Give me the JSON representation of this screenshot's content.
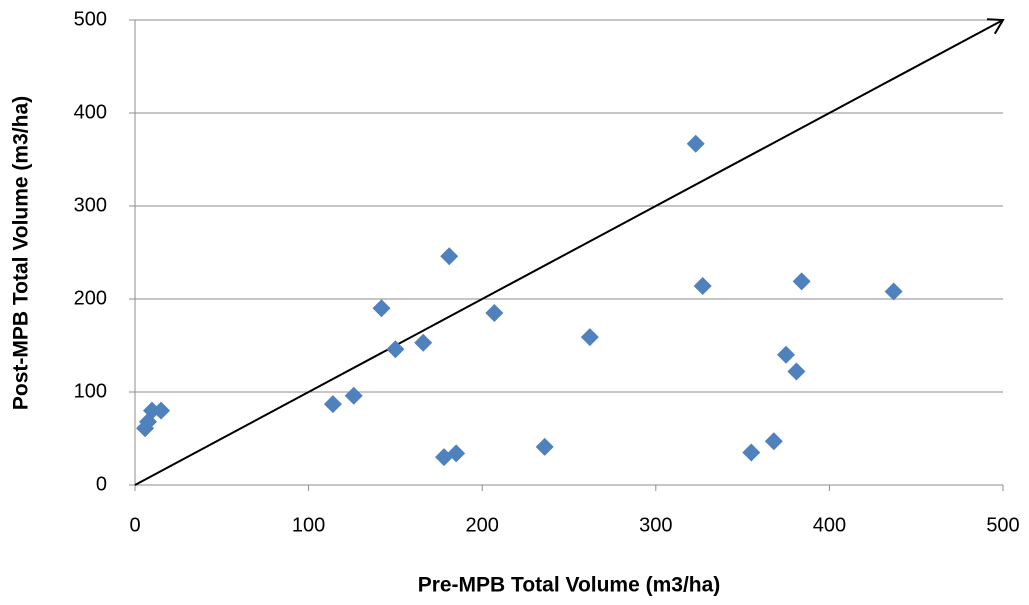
{
  "chart_data": {
    "type": "scatter",
    "x_label": "Pre-MPB Total Volume (m3/ha)",
    "y_label": "Post-MPB Total Volume (m3/ha)",
    "x": [
      5.8,
      7.5,
      9.8,
      15,
      114,
      126,
      142,
      150,
      166,
      178,
      181,
      185,
      207,
      236,
      262,
      323,
      327,
      355,
      368,
      375,
      381,
      384,
      437
    ],
    "values": [
      61,
      68,
      80,
      80,
      87,
      96,
      190,
      146,
      153,
      30,
      246,
      34,
      185,
      41,
      159,
      367,
      214,
      35,
      47,
      140,
      122,
      219,
      208
    ],
    "color": "#4f81bd",
    "xlim": [
      0,
      500
    ],
    "ylim": [
      0,
      500
    ],
    "xticks": [
      0,
      100,
      200,
      300,
      400,
      500
    ],
    "yticks": [
      0,
      100,
      200,
      300,
      400,
      500
    ],
    "grid": true,
    "reference_line": true
  }
}
